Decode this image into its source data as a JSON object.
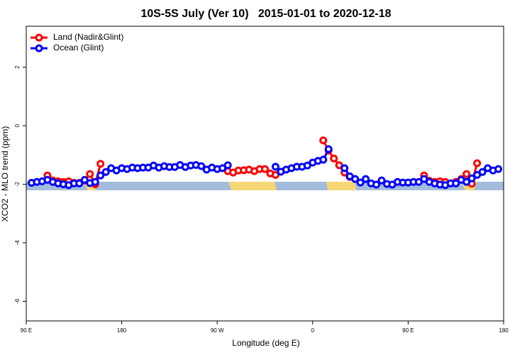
{
  "chart_data": {
    "type": "line",
    "title": "10S-5S July (Ver 10)   2015-01-01 to 2020-12-18",
    "x_label": "Longitude (deg E)",
    "y_label": "XCO2 - MLO trend (ppm)",
    "xlim": [
      -270,
      180
    ],
    "xticks": [
      {
        "value": -270,
        "label": "90 E"
      },
      {
        "value": -180,
        "label": "180"
      },
      {
        "value": -90,
        "label": "90 W"
      },
      0,
      {
        "value": 90,
        "label": "90 E"
      },
      {
        "value": 180,
        "label": "180"
      }
    ],
    "ylim": [
      -6.67,
      3.4
    ],
    "yticks": [
      2,
      0,
      -2,
      -4,
      -6
    ],
    "legend": "top-left",
    "x": [
      -265,
      -260,
      -255,
      -250,
      -245,
      -240,
      -235,
      -230,
      -225,
      -220,
      -215,
      -210,
      -205,
      -200,
      -195,
      -190,
      -185,
      -180,
      -175,
      -170,
      -165,
      -160,
      -155,
      -150,
      -145,
      -140,
      -135,
      -130,
      -125,
      -120,
      -115,
      -110,
      -105,
      -100,
      -95,
      -90,
      -85,
      -80,
      -75,
      -70,
      -65,
      -60,
      -55,
      -50,
      -45,
      -40,
      -35,
      -30,
      -25,
      -20,
      -15,
      -10,
      -5,
      0,
      5,
      10,
      15,
      20,
      25,
      30,
      35,
      40,
      45,
      50,
      55,
      60,
      65,
      70,
      75,
      80,
      85,
      90,
      95,
      100,
      105,
      110,
      115,
      120,
      125,
      130,
      135,
      140,
      145,
      150,
      155,
      160,
      165,
      170,
      175
    ],
    "series": [
      {
        "name": "Land (Nadir&Glint)",
        "color": "#ff0000",
        "values": [
          null,
          null,
          null,
          -1.7,
          -1.87,
          -1.9,
          -1.92,
          -1.9,
          -1.95,
          -1.95,
          -1.87,
          -1.65,
          -2.0,
          -1.3,
          null,
          null,
          null,
          null,
          null,
          null,
          null,
          null,
          null,
          null,
          null,
          null,
          null,
          null,
          null,
          null,
          null,
          null,
          null,
          null,
          null,
          null,
          null,
          -1.55,
          -1.6,
          -1.53,
          -1.52,
          -1.5,
          -1.55,
          -1.48,
          -1.48,
          -1.63,
          -1.68,
          null,
          null,
          null,
          null,
          null,
          null,
          null,
          null,
          -0.5,
          -0.85,
          -1.12,
          -1.35,
          -1.6,
          -1.75,
          null,
          null,
          null,
          null,
          null,
          null,
          null,
          null,
          null,
          null,
          null,
          null,
          null,
          -1.7,
          -1.88,
          -1.92,
          -1.9,
          -1.92,
          -1.97,
          -1.92,
          -1.82,
          -1.65,
          -1.98,
          -1.28,
          null,
          null,
          null,
          null
        ]
      },
      {
        "name": "Ocean (Glint)",
        "color": "#0000ff",
        "values": [
          -1.95,
          -1.92,
          -1.9,
          -1.85,
          -1.92,
          -1.97,
          -2.0,
          -2.03,
          -1.97,
          -1.97,
          -1.85,
          -1.96,
          -1.92,
          -1.7,
          -1.58,
          -1.45,
          -1.53,
          -1.45,
          -1.48,
          -1.43,
          -1.45,
          -1.43,
          -1.43,
          -1.36,
          -1.43,
          -1.38,
          -1.41,
          -1.41,
          -1.34,
          -1.41,
          -1.36,
          -1.34,
          -1.38,
          -1.5,
          -1.43,
          -1.48,
          -1.45,
          -1.35,
          null,
          null,
          null,
          null,
          null,
          null,
          null,
          null,
          -1.4,
          -1.57,
          -1.5,
          -1.45,
          -1.4,
          -1.4,
          -1.36,
          -1.26,
          -1.2,
          -1.16,
          -0.8,
          null,
          null,
          -1.45,
          -1.73,
          -1.82,
          -1.94,
          -1.82,
          -1.97,
          -2.01,
          -1.87,
          -1.99,
          -2.01,
          -1.92,
          -1.94,
          -1.94,
          -1.92,
          -1.92,
          -1.82,
          -1.92,
          -1.97,
          -2.01,
          -2.03,
          -1.97,
          -1.97,
          -1.85,
          -1.92,
          -1.8,
          -1.68,
          -1.58,
          -1.45,
          -1.53,
          -1.48
        ]
      }
    ]
  }
}
